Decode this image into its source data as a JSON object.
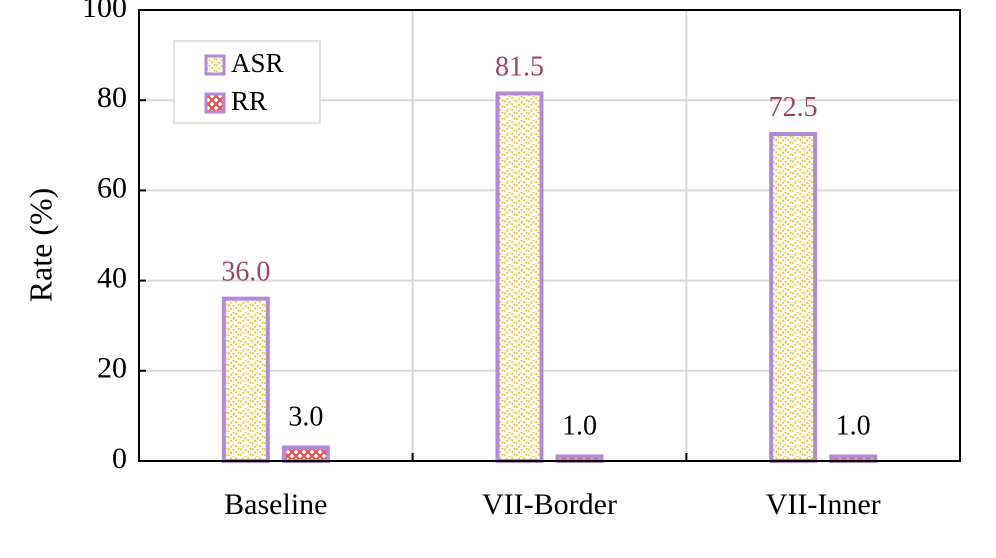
{
  "chart_data": {
    "type": "bar",
    "categories": [
      "Baseline",
      "VII-Border",
      "VII-Inner"
    ],
    "series": [
      {
        "name": "ASR",
        "values": [
          36.0,
          81.5,
          72.5
        ],
        "labels": [
          "36.0",
          "81.5",
          "72.5"
        ]
      },
      {
        "name": "RR",
        "values": [
          3.0,
          1.0,
          1.0
        ],
        "labels": [
          "3.0",
          "1.0",
          "1.0"
        ]
      }
    ],
    "ylabel": "Rate (%)",
    "xlabel": "",
    "ylim": [
      0,
      100
    ],
    "yticks": [
      "0",
      "20",
      "40",
      "60",
      "80",
      "100"
    ],
    "grid": true,
    "legend_position": "top-left",
    "colors": {
      "bar_outline": "#b38ad6",
      "asr_pattern": "#f2c542",
      "rr_pattern": "#e8504c",
      "asr_label": "#a0446c",
      "rr_label": "#000000",
      "grid": "#d9d9d9"
    }
  }
}
